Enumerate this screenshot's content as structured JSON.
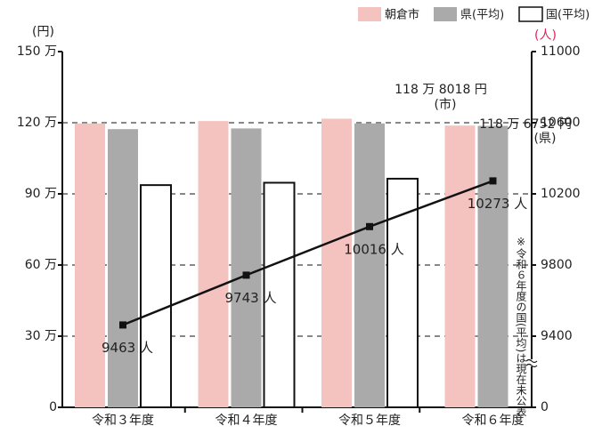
{
  "chart_data": {
    "type": "bar",
    "y_unit": "(円)",
    "y2_unit": "(人)",
    "categories": [
      "令和３年度",
      "令和４年度",
      "令和５年度",
      "令和６年度"
    ],
    "series": [
      {
        "name": "朝倉市",
        "color": "#f4c2bf",
        "values": [
          1197000,
          1207000,
          1217000,
          1188018
        ],
        "value_labels": [
          null,
          null,
          null,
          "118 万 8018 円"
        ]
      },
      {
        "name": "県(平均)",
        "color": "#aaaaaa",
        "values": [
          1173000,
          1176000,
          1197000,
          1186752
        ],
        "value_labels": [
          null,
          null,
          null,
          "118 万 6752 円"
        ]
      },
      {
        "name": "国(平均)",
        "color": "#ffffff",
        "values": [
          937000,
          947000,
          964000,
          null
        ]
      },
      {
        "type": "line",
        "axis": "y2",
        "color": "#111111",
        "label_color": "#e0245e",
        "values": [
          9463,
          9743,
          10016,
          10273
        ],
        "value_labels": [
          "9463 人",
          "9743 人",
          "10016 人",
          "10273 人"
        ]
      }
    ],
    "annotations": [
      "(市)",
      "(県)"
    ],
    "note": "※令和６年度の国(平均)は現在未公表",
    "ylim": [
      0,
      1500000
    ],
    "yticks": [
      0,
      {
        "value": 300000,
        "label": "30 万"
      },
      {
        "value": 600000,
        "label": "60 万"
      },
      {
        "value": 900000,
        "label": "90 万"
      },
      {
        "value": 1200000,
        "label": "120 万"
      },
      {
        "value": 1500000,
        "label": "150 万"
      }
    ],
    "y2lim": [
      9000,
      11000
    ],
    "y2ticks": [
      0,
      9400,
      9800,
      10200,
      10600,
      11000
    ],
    "y2_axis_break": true,
    "y2_color": "#e0245e",
    "grid": true
  }
}
